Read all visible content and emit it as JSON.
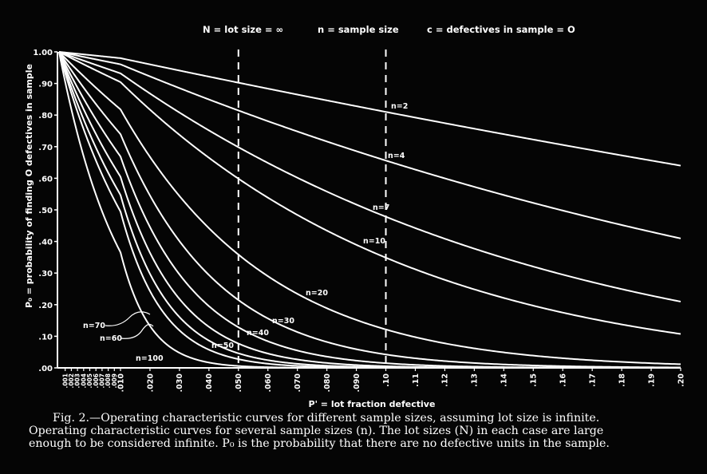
{
  "header": {
    "lot_size": "N = lot size = ∞",
    "sample_size": "n = sample size",
    "defectives": "c = defectives in sample = O"
  },
  "caption": {
    "line1": "Fig. 2.—Operating characteristic curves for different sample sizes, assuming lot size is infinite.",
    "line2": "Operating characteristic curves for several sample sizes (n).   The lot sizes (N) in each case are large",
    "line3": "enough to be considered infinite.   P₀ is the probability that there are no defective units in the sample."
  },
  "chart_data": {
    "type": "line",
    "title": "",
    "xlabel": "P' = lot fraction defective",
    "ylabel": "P₀ = probability of finding O defectives in sample",
    "xlim": [
      0,
      0.2
    ],
    "ylim": [
      0,
      1.0
    ],
    "y_ticks": [
      {
        "v": 0.0,
        "t": ".00"
      },
      {
        "v": 0.1,
        "t": ".10"
      },
      {
        "v": 0.2,
        "t": ".20"
      },
      {
        "v": 0.3,
        "t": ".30"
      },
      {
        "v": 0.4,
        "t": ".40"
      },
      {
        "v": 0.5,
        "t": ".50"
      },
      {
        "v": 0.6,
        "t": ".60"
      },
      {
        "v": 0.7,
        "t": ".70"
      },
      {
        "v": 0.8,
        "t": ".80"
      },
      {
        "v": 0.9,
        "t": ".90"
      },
      {
        "v": 1.0,
        "t": "1.00"
      }
    ],
    "x_ticks": [
      {
        "v": 0.001,
        "t": ".001"
      },
      {
        "v": 0.002,
        "t": ".002"
      },
      {
        "v": 0.003,
        "t": ".003"
      },
      {
        "v": 0.004,
        "t": ".004"
      },
      {
        "v": 0.005,
        "t": ".005"
      },
      {
        "v": 0.006,
        "t": ".006"
      },
      {
        "v": 0.007,
        "t": ".007"
      },
      {
        "v": 0.008,
        "t": ".008"
      },
      {
        "v": 0.009,
        "t": ".009"
      },
      {
        "v": 0.01,
        "t": ".010"
      },
      {
        "v": 0.02,
        "t": ".020"
      },
      {
        "v": 0.03,
        "t": ".030"
      },
      {
        "v": 0.04,
        "t": ".040"
      },
      {
        "v": 0.05,
        "t": ".050"
      },
      {
        "v": 0.06,
        "t": ".060"
      },
      {
        "v": 0.07,
        "t": ".070"
      },
      {
        "v": 0.08,
        "t": ".080"
      },
      {
        "v": 0.09,
        "t": ".090"
      },
      {
        "v": 0.1,
        "t": ".10"
      },
      {
        "v": 0.11,
        "t": ".11"
      },
      {
        "v": 0.12,
        "t": ".12"
      },
      {
        "v": 0.13,
        "t": ".13"
      },
      {
        "v": 0.14,
        "t": ".14"
      },
      {
        "v": 0.15,
        "t": ".15"
      },
      {
        "v": 0.16,
        "t": ".16"
      },
      {
        "v": 0.17,
        "t": ".17"
      },
      {
        "v": 0.18,
        "t": ".18"
      },
      {
        "v": 0.19,
        "t": ".19"
      },
      {
        "v": 0.2,
        "t": ".20"
      }
    ],
    "reference_lines_x": [
      0.05,
      0.1
    ],
    "series": [
      {
        "name": "n=2",
        "n": 2,
        "values": [
          [
            0,
            1.0
          ],
          [
            0.02,
            0.96
          ],
          [
            0.05,
            0.9
          ],
          [
            0.1,
            0.81
          ],
          [
            0.15,
            0.72
          ],
          [
            0.2,
            0.64
          ]
        ]
      },
      {
        "name": "n=4",
        "n": 4,
        "values": [
          [
            0,
            1.0
          ],
          [
            0.02,
            0.92
          ],
          [
            0.05,
            0.81
          ],
          [
            0.1,
            0.66
          ],
          [
            0.15,
            0.52
          ],
          [
            0.2,
            0.41
          ]
        ]
      },
      {
        "name": "n=7",
        "n": 7,
        "values": [
          [
            0,
            1.0
          ],
          [
            0.02,
            0.87
          ],
          [
            0.05,
            0.7
          ],
          [
            0.1,
            0.48
          ],
          [
            0.15,
            0.32
          ],
          [
            0.2,
            0.21
          ]
        ]
      },
      {
        "name": "n=10",
        "n": 10,
        "values": [
          [
            0,
            1.0
          ],
          [
            0.02,
            0.82
          ],
          [
            0.05,
            0.6
          ],
          [
            0.1,
            0.35
          ],
          [
            0.15,
            0.2
          ],
          [
            0.2,
            0.11
          ]
        ]
      },
      {
        "name": "n=20",
        "n": 20,
        "values": [
          [
            0,
            1.0
          ],
          [
            0.02,
            0.67
          ],
          [
            0.05,
            0.36
          ],
          [
            0.1,
            0.12
          ],
          [
            0.15,
            0.04
          ],
          [
            0.2,
            0.01
          ]
        ]
      },
      {
        "name": "n=30",
        "n": 30,
        "values": [
          [
            0,
            1.0
          ],
          [
            0.02,
            0.55
          ],
          [
            0.05,
            0.21
          ],
          [
            0.1,
            0.04
          ],
          [
            0.15,
            0.01
          ],
          [
            0.2,
            0.0
          ]
        ]
      },
      {
        "name": "n=40",
        "n": 40,
        "values": [
          [
            0,
            1.0
          ],
          [
            0.02,
            0.45
          ],
          [
            0.05,
            0.13
          ],
          [
            0.1,
            0.01
          ],
          [
            0.15,
            0.0
          ],
          [
            0.2,
            0.0
          ]
        ]
      },
      {
        "name": "n=50",
        "n": 50,
        "values": [
          [
            0,
            1.0
          ],
          [
            0.02,
            0.36
          ],
          [
            0.05,
            0.08
          ],
          [
            0.1,
            0.01
          ],
          [
            0.15,
            0.0
          ],
          [
            0.2,
            0.0
          ]
        ]
      },
      {
        "name": "n=60",
        "n": 60,
        "values": [
          [
            0,
            1.0
          ],
          [
            0.02,
            0.3
          ],
          [
            0.05,
            0.05
          ],
          [
            0.1,
            0.0
          ],
          [
            0.15,
            0.0
          ],
          [
            0.2,
            0.0
          ]
        ]
      },
      {
        "name": "n=70",
        "n": 70,
        "values": [
          [
            0,
            1.0
          ],
          [
            0.02,
            0.24
          ],
          [
            0.05,
            0.03
          ],
          [
            0.1,
            0.0
          ],
          [
            0.15,
            0.0
          ],
          [
            0.2,
            0.0
          ]
        ]
      },
      {
        "name": "n=100",
        "n": 100,
        "values": [
          [
            0,
            1.0
          ],
          [
            0.02,
            0.13
          ],
          [
            0.05,
            0.01
          ],
          [
            0.1,
            0.0
          ],
          [
            0.15,
            0.0
          ],
          [
            0.2,
            0.0
          ]
        ]
      }
    ]
  }
}
